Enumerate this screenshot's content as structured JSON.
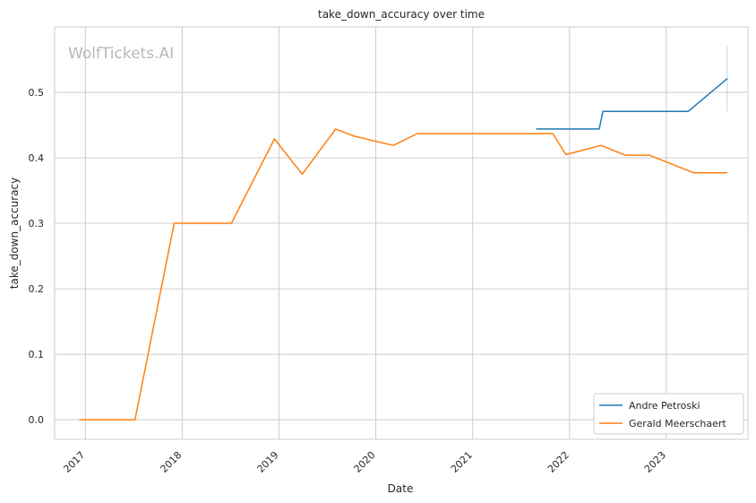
{
  "chart_data": {
    "type": "line",
    "title": "take_down_accuracy over time",
    "xlabel": "Date",
    "ylabel": "take_down_accuracy",
    "watermark": "WolfTickets.AI",
    "xlim": [
      "2016-09-07",
      "2023-11-05"
    ],
    "ylim": [
      -0.03,
      0.6
    ],
    "x_ticks": [
      "2017",
      "2018",
      "2019",
      "2020",
      "2021",
      "2022",
      "2023"
    ],
    "x_tick_dates": [
      "2017-01-01",
      "2018-01-01",
      "2019-01-01",
      "2020-01-01",
      "2021-01-01",
      "2022-01-01",
      "2023-01-01"
    ],
    "y_ticks": [
      0.0,
      0.1,
      0.2,
      0.3,
      0.4,
      0.5
    ],
    "y_tick_labels": [
      "0.0",
      "0.1",
      "0.2",
      "0.3",
      "0.4",
      "0.5"
    ],
    "grid": true,
    "legend_position": "bottom-right",
    "series": [
      {
        "name": "Andre Petroski",
        "color": "#1f77b4",
        "x": [
          "2021-08-28",
          "2022-04-23",
          "2022-05-07",
          "2023-03-25",
          "2023-08-19"
        ],
        "y": [
          0.444,
          0.444,
          0.471,
          0.471,
          0.521
        ],
        "band": {
          "x": "2023-08-19",
          "low": 0.471,
          "high": 0.571
        }
      },
      {
        "name": "Gerald Meerschaert",
        "color": "#ff7f0e",
        "x": [
          "2016-12-09",
          "2017-07-07",
          "2017-12-02",
          "2018-07-06",
          "2018-12-15",
          "2019-03-30",
          "2019-08-03",
          "2019-10-12",
          "2020-03-07",
          "2020-06-06",
          "2021-10-30",
          "2021-12-18",
          "2022-04-30",
          "2022-07-30",
          "2022-10-29",
          "2023-04-15",
          "2023-08-19"
        ],
        "y": [
          0.0,
          0.0,
          0.3,
          0.3,
          0.429,
          0.375,
          0.444,
          0.433,
          0.419,
          0.437,
          0.437,
          0.405,
          0.419,
          0.404,
          0.404,
          0.377,
          0.377
        ]
      }
    ]
  }
}
